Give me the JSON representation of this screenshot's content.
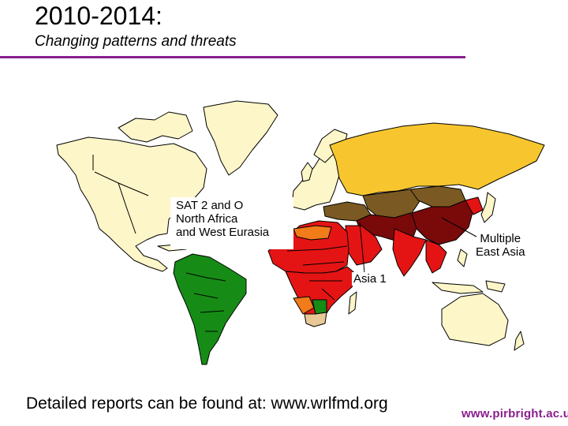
{
  "slide": {
    "title": "2010-2014:",
    "subtitle": "Changing patterns and threats",
    "footer": "Detailed reports can be found at: www.wrlfmd.org",
    "logo_text": "www.pirbright.ac.uk"
  },
  "map_labels": {
    "sat2_line1": "SAT 2 and O",
    "sat2_line2": "North Africa",
    "sat2_line3": "and West Eurasia",
    "asia1": "Asia 1",
    "multiple_line1": "Multiple",
    "multiple_line2": "East Asia"
  },
  "colors": {
    "title_rule": "#8a1e8f",
    "free_cream": "#fdf6c8",
    "russia_yellow": "#f7c62f",
    "endemic_red": "#e41414",
    "dark_red": "#7a0a0a",
    "olive": "#7a5a22",
    "orange": "#f27b1a",
    "green": "#168c16",
    "tan": "#e8c896",
    "logo": "#8a1e8f"
  },
  "icons": {
    "logo": "pirbright-logo"
  }
}
